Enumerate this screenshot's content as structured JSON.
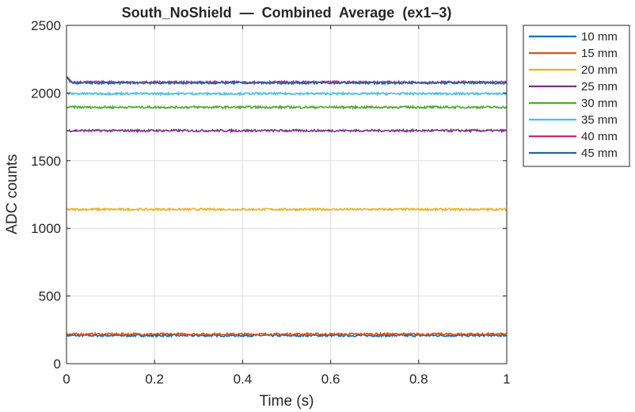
{
  "chart_data": {
    "type": "line",
    "title": "South_NoShield  —  Combined  Average  (ex1–3)",
    "xlabel": "Time (s)",
    "ylabel": "ADC counts",
    "xlim": [
      0,
      1
    ],
    "ylim": [
      0,
      2500
    ],
    "xticks": [
      "0",
      "0.2",
      "0.4",
      "0.6",
      "0.8",
      "1"
    ],
    "yticks": [
      "0",
      "500",
      "1000",
      "1500",
      "2000",
      "2500"
    ],
    "grid": true,
    "legend_position": "outside-top-right",
    "series": [
      {
        "name": "10 mm",
        "color": "#0072BD",
        "value": 208
      },
      {
        "name": "15 mm",
        "color": "#D95319",
        "value": 218
      },
      {
        "name": "20 mm",
        "color": "#EDB120",
        "value": 1140
      },
      {
        "name": "25 mm",
        "color": "#7E2F8E",
        "value": 1722
      },
      {
        "name": "30 mm",
        "color": "#4DAA32",
        "value": 1895
      },
      {
        "name": "35 mm",
        "color": "#4DBEEE",
        "value": 1995
      },
      {
        "name": "40 mm",
        "color": "#D4237A",
        "value": 2080
      },
      {
        "name": "45 mm",
        "color": "#1F65B0",
        "value": 2075
      }
    ]
  }
}
